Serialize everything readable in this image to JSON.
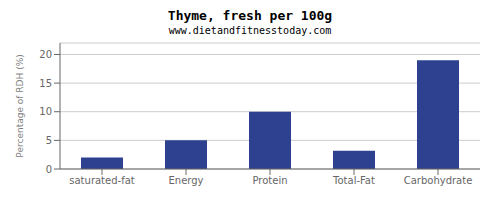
{
  "chart_data": {
    "type": "bar",
    "title": "Thyme, fresh per 100g",
    "subtitle": "www.dietandfitnesstoday.com",
    "categories": [
      "saturated-fat",
      "Energy",
      "Protein",
      "Total-Fat",
      "Carbohydrate"
    ],
    "values": [
      2,
      5,
      10,
      3.2,
      19
    ],
    "color": "#2e4090",
    "ylabel": "Percentage of RDH (%)",
    "ylim": [
      0,
      22
    ],
    "yticks": [
      0,
      5,
      10,
      15,
      20
    ],
    "grid": true
  }
}
